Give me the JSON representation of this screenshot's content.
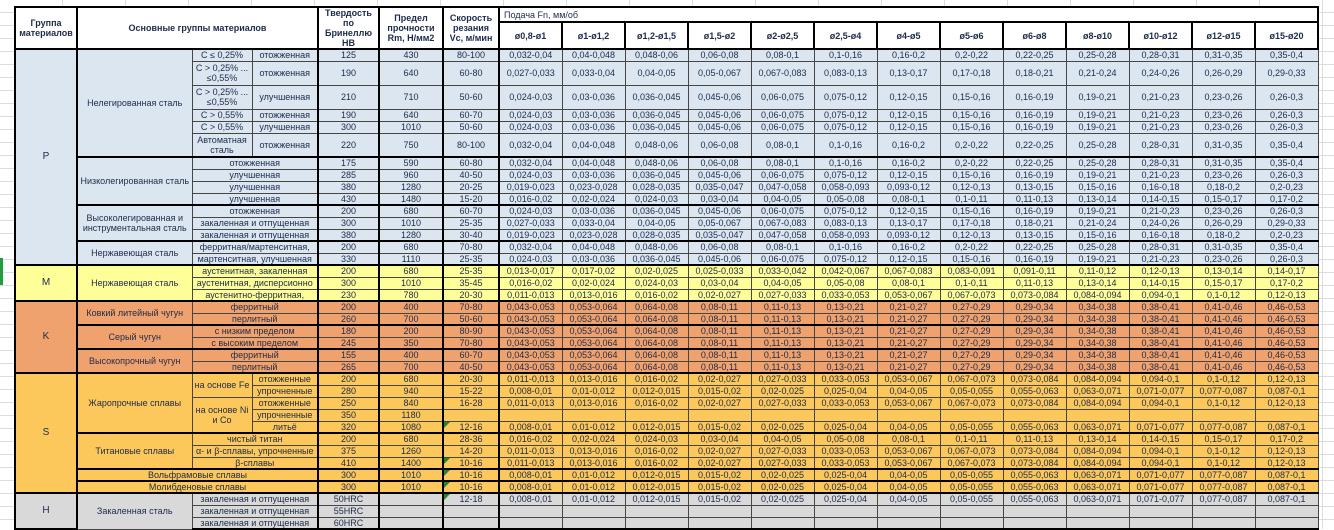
{
  "sheet": {
    "type": "spreadsheet-machining-parameters",
    "colors": {
      "group_P": "#dce6f1",
      "group_M": "#ffff99",
      "group_K": "#f0a26e",
      "group_S": "#fcc75b",
      "group_H": "#d9d9d9",
      "comment_indicator": "#27803b",
      "selection": "#1f9d3f",
      "border": "#000000"
    }
  },
  "table": {
    "headers": {
      "group": "Группа материалов",
      "main_groups": "Основные группы материалов",
      "hardness": "Твердость по Бринеллю HB",
      "strength": "Предел прочности Rm, Н/мм2",
      "speed": "Скорость резания Vc, м/мин",
      "feed": "Подача Fn, мм/об",
      "diameters": [
        "ø0,8-ø1",
        "ø1-ø1,2",
        "ø1,2-ø1,5",
        "ø1,5-ø2",
        "ø2-ø2,5",
        "ø2,5-ø4",
        "ø4-ø5",
        "ø5-ø6",
        "ø6-ø8",
        "ø8-ø10",
        "ø10-ø12",
        "ø12-ø15",
        "ø15-ø20"
      ]
    },
    "feed_patterns": {
      "A": [
        "0,032-0,04",
        "0,04-0,048",
        "0,048-0,06",
        "0,06-0,08",
        "0,08-0,1",
        "0,1-0,16",
        "0,16-0,2",
        "0,2-0,22",
        "0,22-0,25",
        "0,25-0,28",
        "0,28-0,31",
        "0,31-0,35",
        "0,35-0,4"
      ],
      "B": [
        "0,027-0,033",
        "0,033-0,04",
        "0,04-0,05",
        "0,05-0,067",
        "0,067-0,083",
        "0,083-0,13",
        "0,13-0,17",
        "0,17-0,18",
        "0,18-0,21",
        "0,21-0,24",
        "0,24-0,26",
        "0,26-0,29",
        "0,29-0,33"
      ],
      "C": [
        "0,024-0,03",
        "0,03-0,036",
        "0,036-0,045",
        "0,045-0,06",
        "0,06-0,075",
        "0,075-0,12",
        "0,12-0,15",
        "0,15-0,16",
        "0,16-0,19",
        "0,19-0,21",
        "0,21-0,23",
        "0,23-0,26",
        "0,26-0,3"
      ],
      "D": [
        "0,019-0,023",
        "0,023-0,028",
        "0,028-0,035",
        "0,035-0,047",
        "0,047-0,058",
        "0,058-0,093",
        "0,093-0,12",
        "0,12-0,13",
        "0,13-0,15",
        "0,15-0,16",
        "0,16-0,18",
        "0,18-0,2",
        "0,2-0,23"
      ],
      "E": [
        "0,016-0,02",
        "0,02-0,024",
        "0,024-0,03",
        "0,03-0,04",
        "0,04-0,05",
        "0,05-0,08",
        "0,08-0,1",
        "0,1-0,11",
        "0,11-0,13",
        "0,13-0,14",
        "0,14-0,15",
        "0,15-0,17",
        "0,17-0,2"
      ],
      "M1": [
        "0,013-0,017",
        "0,017-0,02",
        "0,02-0,025",
        "0,025-0,033",
        "0,033-0,042",
        "0,042-0,067",
        "0,067-0,083",
        "0,083-0,091",
        "0,091-0,11",
        "0,11-0,12",
        "0,12-0,13",
        "0,13-0,14",
        "0,14-0,17"
      ],
      "M2": [
        "0,011-0,013",
        "0,013-0,016",
        "0,016-0,02",
        "0,02-0,027",
        "0,027-0,033",
        "0,033-0,053",
        "0,053-0,067",
        "0,067-0,073",
        "0,073-0,084",
        "0,084-0,094",
        "0,094-0,1",
        "0,1-0,12",
        "0,12-0,13"
      ],
      "K": [
        "0,043-0,053",
        "0,053-0,064",
        "0,064-0,08",
        "0,08-0,11",
        "0,11-0,13",
        "0,13-0,21",
        "0,21-0,27",
        "0,27-0,29",
        "0,29-0,34",
        "0,34-0,38",
        "0,38-0,41",
        "0,41-0,46",
        "0,46-0,53"
      ],
      "S": [
        "0,008-0,01",
        "0,01-0,012",
        "0,012-0,015",
        "0,015-0,02",
        "0,02-0,025",
        "0,025-0,04",
        "0,04-0,05",
        "0,05-0,055",
        "0,055-0,063",
        "0,063-0,071",
        "0,071-0,077",
        "0,077-0,087",
        "0,087-0,1"
      ],
      "EMPTY": [
        "",
        "",
        "",
        "",
        "",
        "",
        "",
        "",
        "",
        "",
        "",
        "",
        ""
      ]
    },
    "groups": [
      {
        "code": "P",
        "color": "#dce6f1",
        "families": [
          {
            "name": "Нелегированная сталь",
            "rows": [
              {
                "sub1": "C ≤ 0,25%",
                "sub2": "отожженная",
                "hb": "125",
                "rm": "430",
                "vc": "80-100",
                "feeds": "A"
              },
              {
                "sub1": "C > 0,25% ... ≤0,55%",
                "sub2": "отожженная",
                "hb": "190",
                "rm": "640",
                "vc": "60-80",
                "feeds": "B",
                "tall": true
              },
              {
                "sub1": "C > 0,25% ... ≤0,55%",
                "sub2": "улучшенная",
                "hb": "210",
                "rm": "710",
                "vc": "50-60",
                "feeds": "C",
                "tall": true
              },
              {
                "sub1": "C > 0,55%",
                "sub2": "отожженная",
                "hb": "190",
                "rm": "640",
                "vc": "60-70",
                "feeds": "C"
              },
              {
                "sub1": "C > 0,55%",
                "sub2": "улучшенная",
                "hb": "300",
                "rm": "1010",
                "vc": "50-60",
                "feeds": "C"
              },
              {
                "sub1": "Автоматная сталь",
                "sub2": "отожженная",
                "hb": "220",
                "rm": "750",
                "vc": "80-100",
                "feeds": "A",
                "tall": true
              }
            ]
          },
          {
            "name": "Низколегированная сталь",
            "rows": [
              {
                "sub": "отожженная",
                "hb": "175",
                "rm": "590",
                "vc": "60-80",
                "feeds": "A"
              },
              {
                "sub": "улучшенная",
                "hb": "285",
                "rm": "960",
                "vc": "40-50",
                "feeds": "C"
              },
              {
                "sub": "улучшенная",
                "hb": "380",
                "rm": "1280",
                "vc": "20-25",
                "feeds": "D"
              },
              {
                "sub": "улучшенная",
                "hb": "430",
                "rm": "1480",
                "vc": "15-20",
                "feeds": "E"
              }
            ]
          },
          {
            "name": "Высоколегированная и инструментальная сталь",
            "rows": [
              {
                "sub": "отожженная",
                "hb": "200",
                "rm": "680",
                "vc": "60-70",
                "feeds": "C"
              },
              {
                "sub": "закаленная и отпущенная",
                "hb": "300",
                "rm": "1010",
                "vc": "25-35",
                "feeds": "B"
              },
              {
                "sub": "закаленная и отпущенная",
                "hb": "380",
                "rm": "1280",
                "vc": "30-40",
                "feeds": "D"
              }
            ]
          },
          {
            "name": "Нержавеющая сталь",
            "rows": [
              {
                "sub": "ферритная/мартенситная,",
                "hb": "200",
                "rm": "680",
                "vc": "70-80",
                "feeds": "A"
              },
              {
                "sub": "мартенситная, улучшенная",
                "hb": "330",
                "rm": "1110",
                "vc": "25-35",
                "feeds": "C"
              }
            ]
          }
        ]
      },
      {
        "code": "M",
        "color": "#ffff99",
        "families": [
          {
            "name": "Нержавеющая сталь",
            "rows": [
              {
                "sub": "аустенитная, закаленная",
                "hb": "200",
                "rm": "680",
                "vc": "25-35",
                "feeds": "M1"
              },
              {
                "sub": "аустенитная, дисперсионно",
                "hb": "300",
                "rm": "1010",
                "vc": "35-45",
                "feeds": "E"
              },
              {
                "sub": "аустенитно-ферритная,",
                "hb": "230",
                "rm": "780",
                "vc": "20-30",
                "feeds": "M2"
              }
            ]
          }
        ]
      },
      {
        "code": "K",
        "color": "#f0a26e",
        "families": [
          {
            "name": "Ковкий литейный чугун",
            "rows": [
              {
                "sub": "ферритный",
                "hb": "200",
                "rm": "400",
                "vc": "70-80",
                "feeds": "K"
              },
              {
                "sub": "перлитный",
                "hb": "260",
                "rm": "700",
                "vc": "50-60",
                "feeds": "K"
              }
            ]
          },
          {
            "name": "Серый чугун",
            "rows": [
              {
                "sub": "с низким пределом",
                "hb": "180",
                "rm": "200",
                "vc": "80-90",
                "feeds": "K"
              },
              {
                "sub": "с высоким пределом",
                "hb": "245",
                "rm": "350",
                "vc": "70-80",
                "feeds": "K"
              }
            ]
          },
          {
            "name": "Высокопрочный чугун",
            "rows": [
              {
                "sub": "ферритный",
                "hb": "155",
                "rm": "400",
                "vc": "60-70",
                "feeds": "K"
              },
              {
                "sub": "перлитный",
                "hb": "265",
                "rm": "700",
                "vc": "40-50",
                "feeds": "K"
              }
            ]
          }
        ]
      },
      {
        "code": "S",
        "color": "#fcc75b",
        "families": [
          {
            "name": "Жаропрочные сплавы",
            "rows": [
              {
                "sub1": "на основе Fe",
                "sub1_span": 2,
                "sub2": "отожженные",
                "hb": "200",
                "rm": "680",
                "vc": "20-30",
                "feeds": "M2"
              },
              {
                "sub2": "упрочненные",
                "hb": "280",
                "rm": "940",
                "vc": "15-22",
                "feeds": "S"
              },
              {
                "sub1": "на основе Ni и Co",
                "sub1_span": 3,
                "sub2": "отожженные",
                "hb": "250",
                "rm": "840",
                "vc": "16-28",
                "feeds": "M2"
              },
              {
                "sub2": "упрочненные",
                "hb": "350",
                "rm": "1180",
                "vc": "",
                "feeds": "EMPTY"
              },
              {
                "sub2": "литьё",
                "hb": "320",
                "rm": "1080",
                "vc": "12-16",
                "note": true,
                "feeds": "S"
              }
            ]
          },
          {
            "name": "Титановые сплавы",
            "rows": [
              {
                "sub": "чистый титан",
                "hb": "200",
                "rm": "680",
                "vc": "28-36",
                "feeds": "E"
              },
              {
                "sub": "α- и β-сплавы, упрочненные",
                "hb": "375",
                "rm": "1260",
                "vc": "14-20",
                "feeds": "M2"
              },
              {
                "sub": "β-сплавы",
                "hb": "410",
                "rm": "1400",
                "vc": "10-16",
                "note": true,
                "feeds": "M2"
              }
            ]
          },
          {
            "name": "Вольфрамовые сплавы",
            "wide": true,
            "rows": [
              {
                "hb": "300",
                "rm": "1010",
                "vc": "10-16",
                "note": true,
                "feeds": "S"
              }
            ]
          },
          {
            "name": "Молибденовые сплавы",
            "wide": true,
            "rows": [
              {
                "hb": "300",
                "rm": "1010",
                "vc": "10-16",
                "note": true,
                "feeds": "S"
              }
            ]
          }
        ]
      },
      {
        "code": "H",
        "color": "#d9d9d9",
        "families": [
          {
            "name": "Закаленная сталь",
            "rows": [
              {
                "sub": "закаленная и отпущенная",
                "hb": "50HRC",
                "rm": "",
                "vc": "12-18",
                "note": true,
                "feeds": "S"
              },
              {
                "sub": "закаленная и отпущенная",
                "hb": "55HRC",
                "rm": "",
                "vc": "",
                "feeds": "EMPTY"
              },
              {
                "sub": "закаленная и отпущенная",
                "hb": "60HRC",
                "rm": "",
                "vc": "",
                "feeds": "EMPTY"
              }
            ]
          }
        ]
      }
    ]
  }
}
